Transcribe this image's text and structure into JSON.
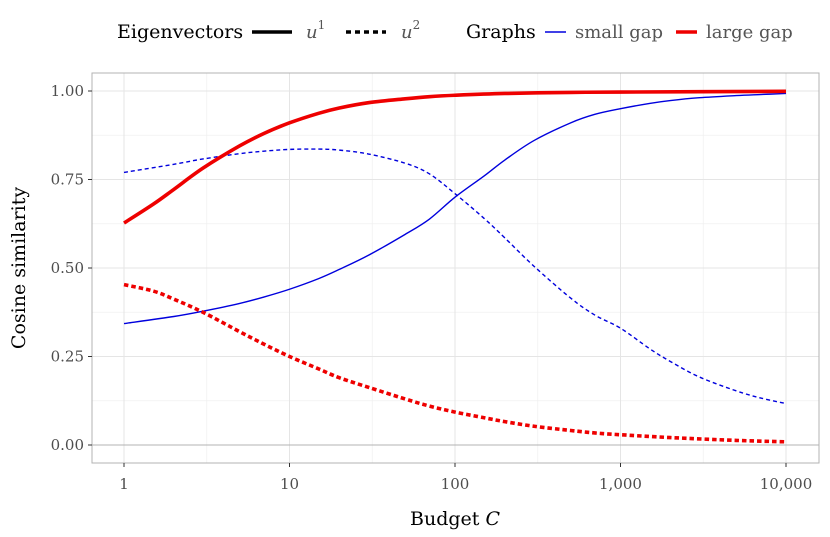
{
  "chart_data": {
    "type": "line",
    "xscale": "log10",
    "xlim": [
      1,
      10000
    ],
    "ylim": [
      0,
      1
    ],
    "xlabel": "Budget ",
    "xlabel_var": "C",
    "ylabel": "Cosine similarity",
    "x_ticks": [
      1,
      10,
      100,
      1000,
      10000
    ],
    "x_tick_labels": [
      "1",
      "10",
      "100",
      "1,000",
      "10,000"
    ],
    "y_ticks": [
      0,
      0.25,
      0.5,
      0.75,
      1
    ],
    "y_tick_labels": [
      "0.00",
      "0.25",
      "0.50",
      "0.75",
      "1.00"
    ],
    "grid": true,
    "legend": {
      "placement": "top",
      "eigen_title": "Eigenvectors",
      "graphs_title": "Graphs",
      "u1_base": "u",
      "u1_sup": "1",
      "u2_base": "u",
      "u2_sup": "2",
      "small_label": "small gap",
      "large_label": "large gap"
    },
    "series": [
      {
        "name": "u1-small-gap",
        "eigenvector": "u1",
        "graph": "small gap",
        "color": "#0000dd",
        "dash": "solid",
        "width": "thin",
        "points": [
          [
            1,
            0.343
          ],
          [
            2,
            0.363
          ],
          [
            3,
            0.378
          ],
          [
            5,
            0.4
          ],
          [
            7,
            0.418
          ],
          [
            10,
            0.44
          ],
          [
            15,
            0.47
          ],
          [
            20,
            0.496
          ],
          [
            30,
            0.536
          ],
          [
            50,
            0.595
          ],
          [
            70,
            0.638
          ],
          [
            100,
            0.7
          ],
          [
            150,
            0.76
          ],
          [
            200,
            0.805
          ],
          [
            300,
            0.86
          ],
          [
            500,
            0.91
          ],
          [
            700,
            0.934
          ],
          [
            1000,
            0.95
          ],
          [
            1500,
            0.965
          ],
          [
            2000,
            0.973
          ],
          [
            3000,
            0.981
          ],
          [
            5000,
            0.987
          ],
          [
            7000,
            0.99
          ],
          [
            10000,
            0.993
          ]
        ]
      },
      {
        "name": "u2-small-gap",
        "eigenvector": "u2",
        "graph": "small gap",
        "color": "#0000dd",
        "dash": "dashed",
        "width": "thin",
        "points": [
          [
            1,
            0.77
          ],
          [
            2,
            0.793
          ],
          [
            3,
            0.808
          ],
          [
            5,
            0.823
          ],
          [
            7,
            0.83
          ],
          [
            10,
            0.835
          ],
          [
            15,
            0.836
          ],
          [
            20,
            0.833
          ],
          [
            30,
            0.822
          ],
          [
            50,
            0.796
          ],
          [
            70,
            0.766
          ],
          [
            100,
            0.71
          ],
          [
            150,
            0.64
          ],
          [
            200,
            0.585
          ],
          [
            300,
            0.505
          ],
          [
            500,
            0.415
          ],
          [
            700,
            0.367
          ],
          [
            1000,
            0.33
          ],
          [
            1500,
            0.272
          ],
          [
            2000,
            0.236
          ],
          [
            3000,
            0.192
          ],
          [
            5000,
            0.153
          ],
          [
            7000,
            0.133
          ],
          [
            10000,
            0.117
          ]
        ]
      },
      {
        "name": "u1-large-gap",
        "eigenvector": "u1",
        "graph": "large gap",
        "color": "#ee0000",
        "dash": "solid",
        "width": "thick",
        "points": [
          [
            1,
            0.627
          ],
          [
            1.5,
            0.68
          ],
          [
            2,
            0.722
          ],
          [
            3,
            0.782
          ],
          [
            5,
            0.845
          ],
          [
            7,
            0.88
          ],
          [
            10,
            0.91
          ],
          [
            15,
            0.937
          ],
          [
            20,
            0.952
          ],
          [
            30,
            0.967
          ],
          [
            50,
            0.978
          ],
          [
            70,
            0.984
          ],
          [
            100,
            0.988
          ],
          [
            200,
            0.993
          ],
          [
            500,
            0.996
          ],
          [
            1000,
            0.997
          ],
          [
            10000,
            0.999
          ]
        ]
      },
      {
        "name": "u2-large-gap",
        "eigenvector": "u2",
        "graph": "large gap",
        "color": "#ee0000",
        "dash": "dotted",
        "width": "thick",
        "points": [
          [
            1,
            0.453
          ],
          [
            1.5,
            0.435
          ],
          [
            2,
            0.412
          ],
          [
            3,
            0.375
          ],
          [
            5,
            0.32
          ],
          [
            7,
            0.285
          ],
          [
            10,
            0.25
          ],
          [
            15,
            0.215
          ],
          [
            20,
            0.19
          ],
          [
            30,
            0.163
          ],
          [
            50,
            0.13
          ],
          [
            70,
            0.11
          ],
          [
            100,
            0.093
          ],
          [
            150,
            0.077
          ],
          [
            200,
            0.066
          ],
          [
            300,
            0.053
          ],
          [
            500,
            0.041
          ],
          [
            700,
            0.034
          ],
          [
            1000,
            0.029
          ],
          [
            2000,
            0.021
          ],
          [
            5000,
            0.013
          ],
          [
            10000,
            0.009
          ]
        ]
      }
    ]
  }
}
